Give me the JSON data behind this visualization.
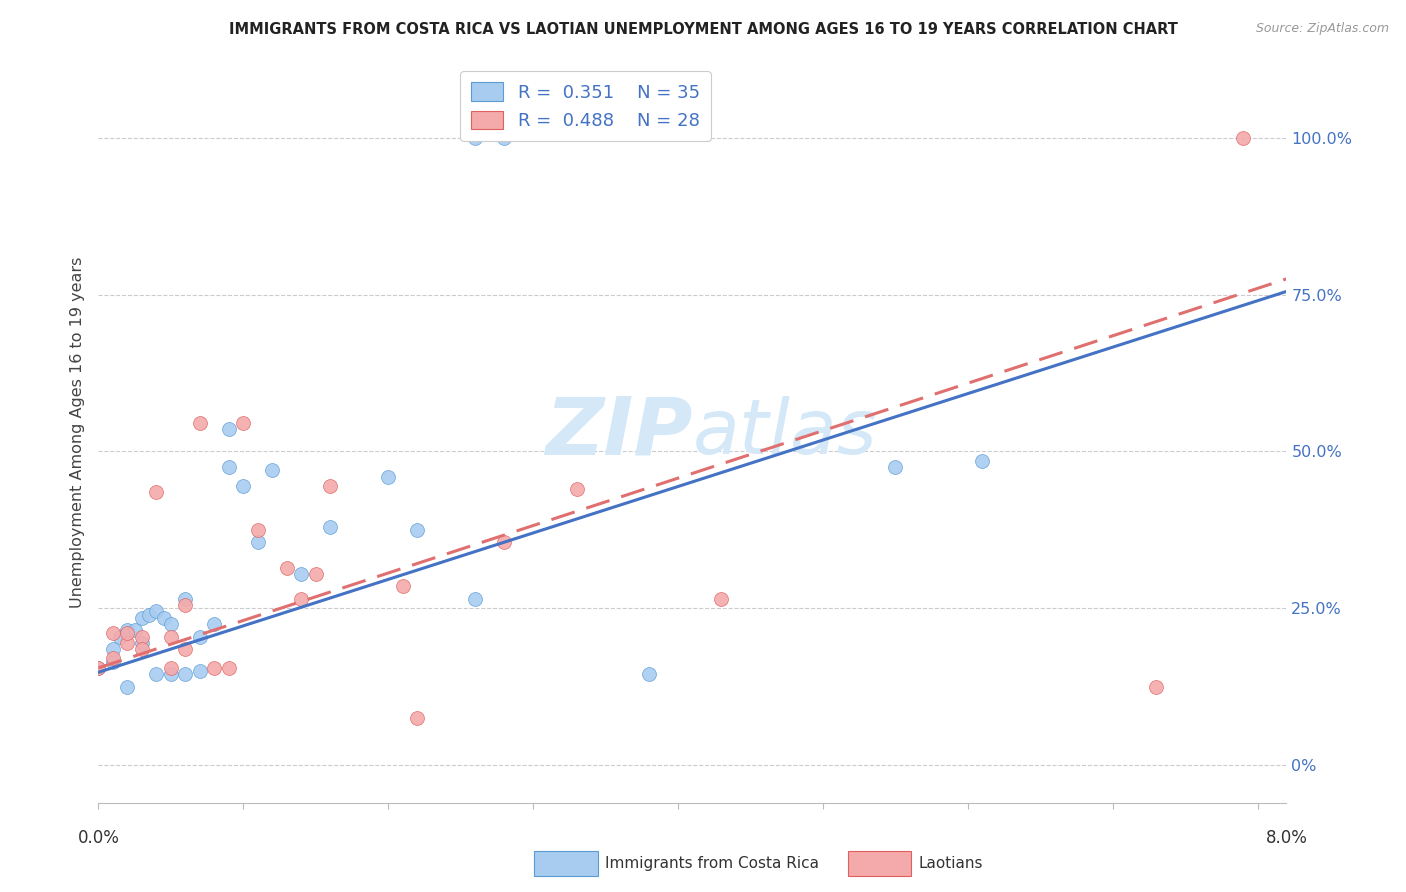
{
  "title": "IMMIGRANTS FROM COSTA RICA VS LAOTIAN UNEMPLOYMENT AMONG AGES 16 TO 19 YEARS CORRELATION CHART",
  "source": "Source: ZipAtlas.com",
  "ylabel": "Unemployment Among Ages 16 to 19 years",
  "legend1_r": "0.351",
  "legend1_n": "35",
  "legend2_r": "0.488",
  "legend2_n": "28",
  "series1_label": "Immigrants from Costa Rica",
  "series2_label": "Laotians",
  "ytick_labels": [
    "0%",
    "25.0%",
    "50.0%",
    "75.0%",
    "100.0%"
  ],
  "ytick_values": [
    0.0,
    0.25,
    0.5,
    0.75,
    1.0
  ],
  "xlim": [
    0.0,
    0.082
  ],
  "ylim": [
    -0.06,
    1.12
  ],
  "blue_face": "#A8CCF0",
  "blue_edge": "#5B9BD5",
  "pink_face": "#F4AAAA",
  "pink_edge": "#E06060",
  "blue_line": "#4472C4",
  "pink_line": "#E07070",
  "watermark_color": "#D4E8F8",
  "bg_color": "#FFFFFF",
  "grid_color": "#CCCCCC",
  "title_color": "#222222",
  "tick_label_color": "#4472C4",
  "source_color": "#999999",
  "marker_size": 100,
  "blue_scatter_x": [
    0.0,
    0.001,
    0.001,
    0.0015,
    0.002,
    0.002,
    0.0025,
    0.003,
    0.003,
    0.0035,
    0.004,
    0.004,
    0.0045,
    0.005,
    0.005,
    0.006,
    0.006,
    0.007,
    0.007,
    0.008,
    0.009,
    0.009,
    0.01,
    0.011,
    0.012,
    0.014,
    0.016,
    0.02,
    0.022,
    0.026,
    0.028,
    0.038,
    0.055,
    0.061,
    0.026
  ],
  "blue_scatter_y": [
    0.155,
    0.165,
    0.185,
    0.205,
    0.215,
    0.125,
    0.215,
    0.195,
    0.235,
    0.24,
    0.245,
    0.145,
    0.235,
    0.225,
    0.145,
    0.145,
    0.265,
    0.15,
    0.205,
    0.225,
    0.535,
    0.475,
    0.445,
    0.355,
    0.47,
    0.305,
    0.38,
    0.46,
    0.375,
    0.265,
    1.0,
    0.145,
    0.475,
    0.485,
    1.0
  ],
  "pink_scatter_x": [
    0.0,
    0.001,
    0.001,
    0.002,
    0.002,
    0.003,
    0.003,
    0.004,
    0.005,
    0.005,
    0.006,
    0.006,
    0.007,
    0.008,
    0.009,
    0.01,
    0.011,
    0.013,
    0.014,
    0.015,
    0.016,
    0.021,
    0.022,
    0.028,
    0.033,
    0.043,
    0.073,
    0.079
  ],
  "pink_scatter_y": [
    0.155,
    0.17,
    0.21,
    0.195,
    0.21,
    0.205,
    0.185,
    0.435,
    0.155,
    0.205,
    0.255,
    0.185,
    0.545,
    0.155,
    0.155,
    0.545,
    0.375,
    0.315,
    0.265,
    0.305,
    0.445,
    0.285,
    0.075,
    0.355,
    0.44,
    0.265,
    0.125,
    1.0
  ],
  "blue_trend_x": [
    0.0,
    0.082
  ],
  "blue_trend_y": [
    0.148,
    0.755
  ],
  "pink_trend_x": [
    0.0,
    0.082
  ],
  "pink_trend_y": [
    0.155,
    0.775
  ]
}
